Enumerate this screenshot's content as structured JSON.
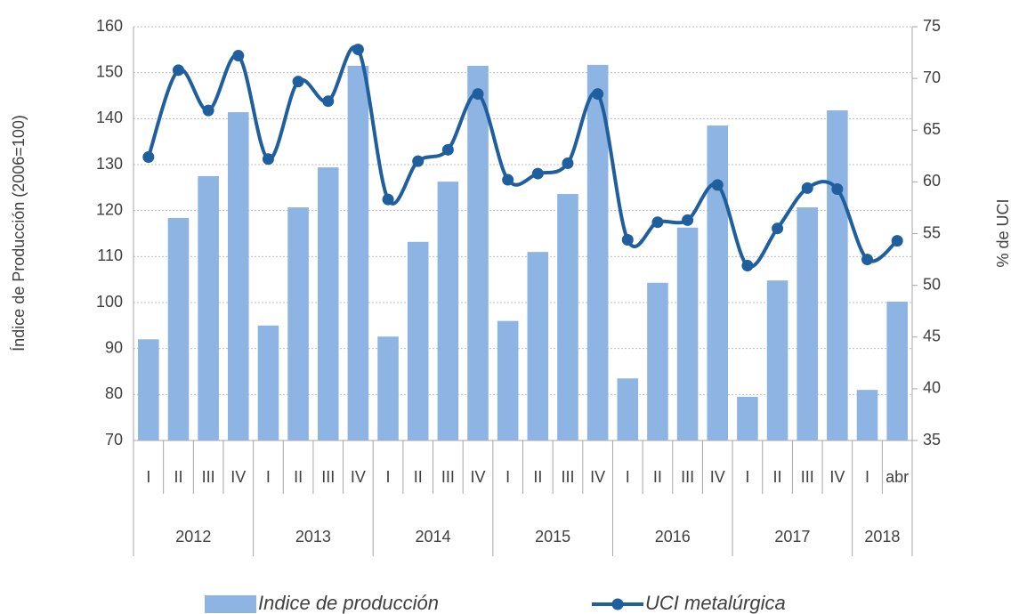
{
  "chart_data": {
    "type": "bar_line",
    "y_label": "Índice de Producción (2006=100)",
    "y2_label": "% de UCI",
    "groups": [
      {
        "label": "2012",
        "categories": [
          "I",
          "II",
          "III",
          "IV"
        ]
      },
      {
        "label": "2013",
        "categories": [
          "I",
          "II",
          "III",
          "IV"
        ]
      },
      {
        "label": "2014",
        "categories": [
          "I",
          "II",
          "III",
          "IV"
        ]
      },
      {
        "label": "2015",
        "categories": [
          "I",
          "II",
          "III",
          "IV"
        ]
      },
      {
        "label": "2016",
        "categories": [
          "I",
          "II",
          "III",
          "IV"
        ]
      },
      {
        "label": "2017",
        "categories": [
          "I",
          "II",
          "III",
          "IV"
        ]
      },
      {
        "label": "2018",
        "categories": [
          "I",
          "abr"
        ]
      }
    ],
    "series": [
      {
        "name": "Indice de producción",
        "kind": "bar",
        "color": "#8db4e2",
        "values": [
          92,
          118.4,
          127.5,
          141.4,
          95,
          120.7,
          129.4,
          151.5,
          92.6,
          113.2,
          126.3,
          151.5,
          96,
          111,
          123.6,
          151.7,
          83.5,
          104.3,
          116.3,
          138.5,
          79.5,
          104.8,
          120.7,
          141.8,
          81,
          100.2
        ]
      },
      {
        "name": "UCI metalúrgica",
        "kind": "line",
        "axis": "y2",
        "color": "#1f5f9e",
        "values": [
          62.4,
          70.8,
          66.9,
          72.2,
          62.2,
          69.7,
          67.8,
          72.8,
          58.3,
          62,
          63.1,
          68.5,
          60.2,
          60.8,
          61.8,
          68.5,
          54.4,
          56.1,
          56.3,
          59.7,
          51.9,
          55.5,
          59.4,
          59.3,
          52.5,
          54.3
        ]
      }
    ],
    "ylim": [
      70,
      160
    ],
    "yticks": [
      70,
      80,
      90,
      100,
      110,
      120,
      130,
      140,
      150,
      160
    ],
    "y2lim": [
      35,
      75
    ],
    "y2ticks": [
      35,
      40,
      45,
      50,
      55,
      60,
      65,
      70,
      75
    ],
    "grid": true
  }
}
